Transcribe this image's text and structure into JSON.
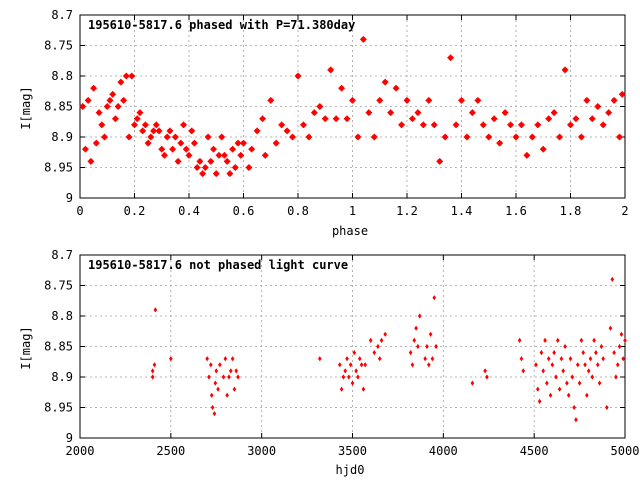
{
  "chart_data": [
    {
      "type": "scatter",
      "title": "195610-5817.6 phased with P=71.380day",
      "xlabel": "phase",
      "ylabel": "I[mag]",
      "xlim": [
        0,
        2
      ],
      "ylim": [
        8.7,
        9.0
      ],
      "y_inverted": true,
      "grid": true,
      "marker_color": "#ff0000",
      "x_ticks": [
        "0",
        "0.2",
        "0.4",
        "0.6",
        "0.8",
        "1",
        "1.2",
        "1.4",
        "1.6",
        "1.8",
        "2"
      ],
      "y_ticks": [
        "8.7",
        "8.75",
        "8.8",
        "8.85",
        "8.9",
        "8.95",
        "9"
      ],
      "series": [
        {
          "points": [
            [
              0.01,
              8.85
            ],
            [
              0.02,
              8.92
            ],
            [
              0.03,
              8.84
            ],
            [
              0.04,
              8.94
            ],
            [
              0.05,
              8.82
            ],
            [
              0.06,
              8.91
            ],
            [
              0.07,
              8.86
            ],
            [
              0.08,
              8.88
            ],
            [
              0.09,
              8.9
            ],
            [
              0.1,
              8.85
            ],
            [
              0.11,
              8.84
            ],
            [
              0.12,
              8.83
            ],
            [
              0.13,
              8.87
            ],
            [
              0.14,
              8.85
            ],
            [
              0.15,
              8.81
            ],
            [
              0.16,
              8.84
            ],
            [
              0.17,
              8.8
            ],
            [
              0.18,
              8.9
            ],
            [
              0.19,
              8.8
            ],
            [
              0.2,
              8.88
            ],
            [
              0.21,
              8.87
            ],
            [
              0.22,
              8.86
            ],
            [
              0.23,
              8.89
            ],
            [
              0.24,
              8.88
            ],
            [
              0.25,
              8.91
            ],
            [
              0.26,
              8.9
            ],
            [
              0.27,
              8.89
            ],
            [
              0.28,
              8.88
            ],
            [
              0.29,
              8.89
            ],
            [
              0.3,
              8.92
            ],
            [
              0.31,
              8.93
            ],
            [
              0.32,
              8.9
            ],
            [
              0.33,
              8.89
            ],
            [
              0.34,
              8.92
            ],
            [
              0.35,
              8.9
            ],
            [
              0.36,
              8.94
            ],
            [
              0.37,
              8.91
            ],
            [
              0.38,
              8.88
            ],
            [
              0.39,
              8.92
            ],
            [
              0.4,
              8.93
            ],
            [
              0.41,
              8.89
            ],
            [
              0.42,
              8.91
            ],
            [
              0.43,
              8.95
            ],
            [
              0.44,
              8.94
            ],
            [
              0.45,
              8.96
            ],
            [
              0.46,
              8.95
            ],
            [
              0.47,
              8.9
            ],
            [
              0.48,
              8.94
            ],
            [
              0.49,
              8.92
            ],
            [
              0.5,
              8.96
            ],
            [
              0.51,
              8.93
            ],
            [
              0.52,
              8.9
            ],
            [
              0.53,
              8.93
            ],
            [
              0.54,
              8.94
            ],
            [
              0.55,
              8.96
            ],
            [
              0.56,
              8.92
            ],
            [
              0.57,
              8.95
            ],
            [
              0.58,
              8.91
            ],
            [
              0.59,
              8.93
            ],
            [
              0.6,
              8.91
            ],
            [
              0.62,
              8.95
            ],
            [
              0.63,
              8.92
            ],
            [
              0.65,
              8.89
            ],
            [
              0.67,
              8.87
            ],
            [
              0.68,
              8.93
            ],
            [
              0.7,
              8.84
            ],
            [
              0.72,
              8.91
            ],
            [
              0.74,
              8.88
            ],
            [
              0.76,
              8.89
            ],
            [
              0.78,
              8.9
            ],
            [
              0.8,
              8.8
            ],
            [
              0.82,
              8.88
            ],
            [
              0.84,
              8.9
            ],
            [
              0.86,
              8.86
            ],
            [
              0.88,
              8.85
            ],
            [
              0.9,
              8.87
            ],
            [
              0.92,
              8.79
            ],
            [
              0.94,
              8.87
            ],
            [
              0.96,
              8.82
            ],
            [
              0.98,
              8.87
            ],
            [
              1.0,
              8.84
            ],
            [
              1.02,
              8.9
            ],
            [
              1.04,
              8.74
            ],
            [
              1.06,
              8.86
            ],
            [
              1.08,
              8.9
            ],
            [
              1.1,
              8.84
            ],
            [
              1.12,
              8.81
            ],
            [
              1.14,
              8.86
            ],
            [
              1.16,
              8.82
            ],
            [
              1.18,
              8.88
            ],
            [
              1.2,
              8.84
            ],
            [
              1.22,
              8.87
            ],
            [
              1.24,
              8.86
            ],
            [
              1.26,
              8.88
            ],
            [
              1.28,
              8.84
            ],
            [
              1.3,
              8.88
            ],
            [
              1.32,
              8.94
            ],
            [
              1.34,
              8.9
            ],
            [
              1.36,
              8.77
            ],
            [
              1.38,
              8.88
            ],
            [
              1.4,
              8.84
            ],
            [
              1.42,
              8.9
            ],
            [
              1.44,
              8.86
            ],
            [
              1.46,
              8.84
            ],
            [
              1.48,
              8.88
            ],
            [
              1.5,
              8.9
            ],
            [
              1.52,
              8.87
            ],
            [
              1.54,
              8.91
            ],
            [
              1.56,
              8.86
            ],
            [
              1.58,
              8.88
            ],
            [
              1.6,
              8.9
            ],
            [
              1.62,
              8.88
            ],
            [
              1.64,
              8.93
            ],
            [
              1.66,
              8.9
            ],
            [
              1.68,
              8.88
            ],
            [
              1.7,
              8.92
            ],
            [
              1.72,
              8.87
            ],
            [
              1.74,
              8.86
            ],
            [
              1.76,
              8.9
            ],
            [
              1.78,
              8.79
            ],
            [
              1.8,
              8.88
            ],
            [
              1.82,
              8.87
            ],
            [
              1.84,
              8.9
            ],
            [
              1.86,
              8.84
            ],
            [
              1.88,
              8.87
            ],
            [
              1.9,
              8.85
            ],
            [
              1.92,
              8.88
            ],
            [
              1.94,
              8.86
            ],
            [
              1.96,
              8.84
            ],
            [
              1.98,
              8.9
            ],
            [
              1.99,
              8.83
            ]
          ]
        }
      ]
    },
    {
      "type": "scatter",
      "title": "195610-5817.6 not phased light curve",
      "xlabel": "hjd0",
      "ylabel": "I[mag]",
      "xlim": [
        2000,
        5000
      ],
      "ylim": [
        8.7,
        9.0
      ],
      "y_inverted": true,
      "grid": true,
      "marker_color": "#ff0000",
      "x_ticks": [
        "2000",
        "2500",
        "3000",
        "3500",
        "4000",
        "4500",
        "5000"
      ],
      "y_ticks": [
        "8.7",
        "8.75",
        "8.8",
        "8.85",
        "8.9",
        "8.95",
        "9"
      ],
      "series": [
        {
          "points": [
            [
              2400,
              8.89
            ],
            [
              2400,
              8.9
            ],
            [
              2410,
              8.88
            ],
            [
              2415,
              8.79
            ],
            [
              2500,
              8.87
            ],
            [
              2700,
              8.87
            ],
            [
              2710,
              8.9
            ],
            [
              2720,
              8.88
            ],
            [
              2725,
              8.93
            ],
            [
              2730,
              8.95
            ],
            [
              2740,
              8.96
            ],
            [
              2745,
              8.91
            ],
            [
              2750,
              8.89
            ],
            [
              2760,
              8.92
            ],
            [
              2770,
              8.88
            ],
            [
              2790,
              8.9
            ],
            [
              2800,
              8.87
            ],
            [
              2810,
              8.93
            ],
            [
              2820,
              8.9
            ],
            [
              2830,
              8.89
            ],
            [
              2840,
              8.87
            ],
            [
              2850,
              8.92
            ],
            [
              2860,
              8.89
            ],
            [
              2870,
              8.9
            ],
            [
              3320,
              8.87
            ],
            [
              3430,
              8.88
            ],
            [
              3440,
              8.92
            ],
            [
              3450,
              8.9
            ],
            [
              3460,
              8.89
            ],
            [
              3470,
              8.87
            ],
            [
              3480,
              8.9
            ],
            [
              3490,
              8.88
            ],
            [
              3500,
              8.91
            ],
            [
              3510,
              8.86
            ],
            [
              3520,
              8.89
            ],
            [
              3530,
              8.9
            ],
            [
              3540,
              8.87
            ],
            [
              3550,
              8.88
            ],
            [
              3560,
              8.92
            ],
            [
              3570,
              8.88
            ],
            [
              3600,
              8.84
            ],
            [
              3620,
              8.86
            ],
            [
              3640,
              8.85
            ],
            [
              3650,
              8.87
            ],
            [
              3660,
              8.84
            ],
            [
              3680,
              8.83
            ],
            [
              3820,
              8.86
            ],
            [
              3830,
              8.88
            ],
            [
              3840,
              8.84
            ],
            [
              3850,
              8.82
            ],
            [
              3860,
              8.85
            ],
            [
              3870,
              8.8
            ],
            [
              3900,
              8.87
            ],
            [
              3910,
              8.85
            ],
            [
              3920,
              8.88
            ],
            [
              3930,
              8.83
            ],
            [
              3940,
              8.87
            ],
            [
              3950,
              8.77
            ],
            [
              3960,
              8.85
            ],
            [
              4160,
              8.91
            ],
            [
              4230,
              8.89
            ],
            [
              4240,
              8.9
            ],
            [
              4420,
              8.84
            ],
            [
              4430,
              8.87
            ],
            [
              4440,
              8.89
            ],
            [
              4510,
              8.88
            ],
            [
              4520,
              8.92
            ],
            [
              4530,
              8.94
            ],
            [
              4540,
              8.86
            ],
            [
              4550,
              8.89
            ],
            [
              4560,
              8.84
            ],
            [
              4570,
              8.91
            ],
            [
              4580,
              8.87
            ],
            [
              4590,
              8.93
            ],
            [
              4600,
              8.88
            ],
            [
              4610,
              8.86
            ],
            [
              4620,
              8.9
            ],
            [
              4630,
              8.84
            ],
            [
              4640,
              8.92
            ],
            [
              4650,
              8.87
            ],
            [
              4660,
              8.89
            ],
            [
              4670,
              8.85
            ],
            [
              4680,
              8.91
            ],
            [
              4690,
              8.93
            ],
            [
              4700,
              8.87
            ],
            [
              4710,
              8.9
            ],
            [
              4720,
              8.95
            ],
            [
              4730,
              8.97
            ],
            [
              4740,
              8.88
            ],
            [
              4750,
              8.91
            ],
            [
              4760,
              8.84
            ],
            [
              4770,
              8.86
            ],
            [
              4780,
              8.88
            ],
            [
              4790,
              8.93
            ],
            [
              4800,
              8.89
            ],
            [
              4810,
              8.87
            ],
            [
              4820,
              8.9
            ],
            [
              4830,
              8.84
            ],
            [
              4840,
              8.86
            ],
            [
              4850,
              8.88
            ],
            [
              4860,
              8.91
            ],
            [
              4870,
              8.85
            ],
            [
              4880,
              8.87
            ],
            [
              4900,
              8.95
            ],
            [
              4920,
              8.82
            ],
            [
              4930,
              8.74
            ],
            [
              4940,
              8.86
            ],
            [
              4950,
              8.9
            ],
            [
              4960,
              8.88
            ],
            [
              4970,
              8.85
            ],
            [
              4980,
              8.83
            ],
            [
              4990,
              8.87
            ],
            [
              5000,
              8.84
            ]
          ]
        }
      ]
    }
  ]
}
